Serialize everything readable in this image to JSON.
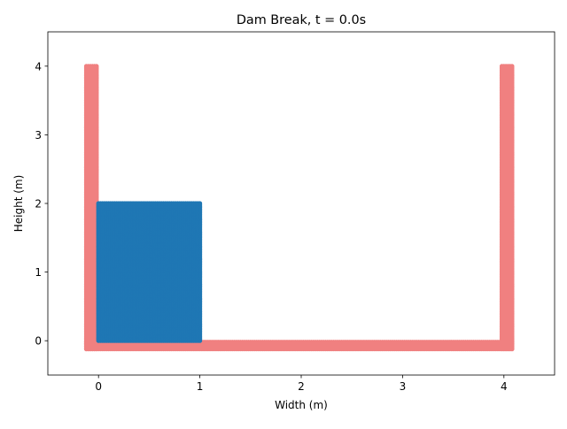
{
  "chart_data": {
    "type": "scatter",
    "title": "Dam Break, t = 0.0s",
    "xlabel": "Width (m)",
    "ylabel": "Height (m)",
    "xlim": [
      -0.5,
      4.5
    ],
    "ylim": [
      -0.5,
      4.5
    ],
    "xticks": [
      0,
      1,
      2,
      3,
      4
    ],
    "yticks": [
      0,
      1,
      2,
      3,
      4
    ],
    "grid": false,
    "legend": "none",
    "particle_spacing": 0.02,
    "series": [
      {
        "role": "boundary",
        "color": "#f08080",
        "regions": [
          {
            "x": [
              -0.12,
              -0.02
            ],
            "y": [
              -0.12,
              4.0
            ]
          },
          {
            "x": [
              -0.12,
              4.08
            ],
            "y": [
              -0.12,
              -0.02
            ]
          },
          {
            "x": [
              3.98,
              4.08
            ],
            "y": [
              -0.12,
              4.0
            ]
          }
        ]
      },
      {
        "role": "fluid",
        "color": "#1f77b4",
        "regions": [
          {
            "x": [
              0.0,
              1.0
            ],
            "y": [
              0.0,
              2.0
            ]
          }
        ]
      }
    ]
  }
}
